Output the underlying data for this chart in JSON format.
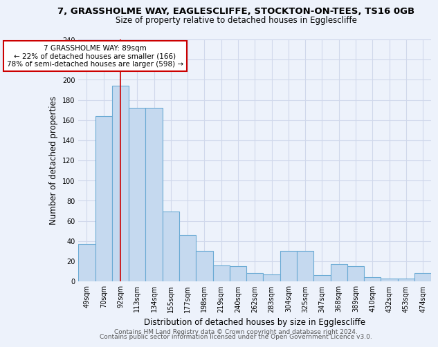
{
  "title": "7, GRASSHOLME WAY, EAGLESCLIFFE, STOCKTON-ON-TEES, TS16 0GB",
  "subtitle": "Size of property relative to detached houses in Egglescliffe",
  "xlabel": "Distribution of detached houses by size in Egglescliffe",
  "ylabel": "Number of detached properties",
  "categories": [
    "49sqm",
    "70sqm",
    "92sqm",
    "113sqm",
    "134sqm",
    "155sqm",
    "177sqm",
    "198sqm",
    "219sqm",
    "240sqm",
    "262sqm",
    "283sqm",
    "304sqm",
    "325sqm",
    "347sqm",
    "368sqm",
    "389sqm",
    "410sqm",
    "432sqm",
    "453sqm",
    "474sqm"
  ],
  "values": [
    37,
    164,
    194,
    172,
    172,
    69,
    46,
    30,
    16,
    15,
    8,
    7,
    30,
    30,
    6,
    17,
    15,
    4,
    3,
    3,
    8
  ],
  "bar_color": "#c5d9ef",
  "bar_edge_color": "#6aaad4",
  "vline_x_index": 2,
  "vline_color": "#cc0000",
  "annotation_text": "7 GRASSHOLME WAY: 89sqm\n← 22% of detached houses are smaller (166)\n78% of semi-detached houses are larger (598) →",
  "annotation_box_color": "white",
  "annotation_box_edge": "#cc0000",
  "ylim": [
    0,
    240
  ],
  "yticks": [
    0,
    20,
    40,
    60,
    80,
    100,
    120,
    140,
    160,
    180,
    200,
    220,
    240
  ],
  "footer1": "Contains HM Land Registry data © Crown copyright and database right 2024.",
  "footer2": "Contains public sector information licensed under the Open Government Licence v3.0.",
  "bg_color": "#edf2fb",
  "grid_color": "#d0d8eb",
  "title_fontsize": 9.5,
  "subtitle_fontsize": 8.5,
  "axis_label_fontsize": 8.5,
  "tick_fontsize": 7,
  "footer_fontsize": 6.5,
  "annotation_fontsize": 7.5
}
